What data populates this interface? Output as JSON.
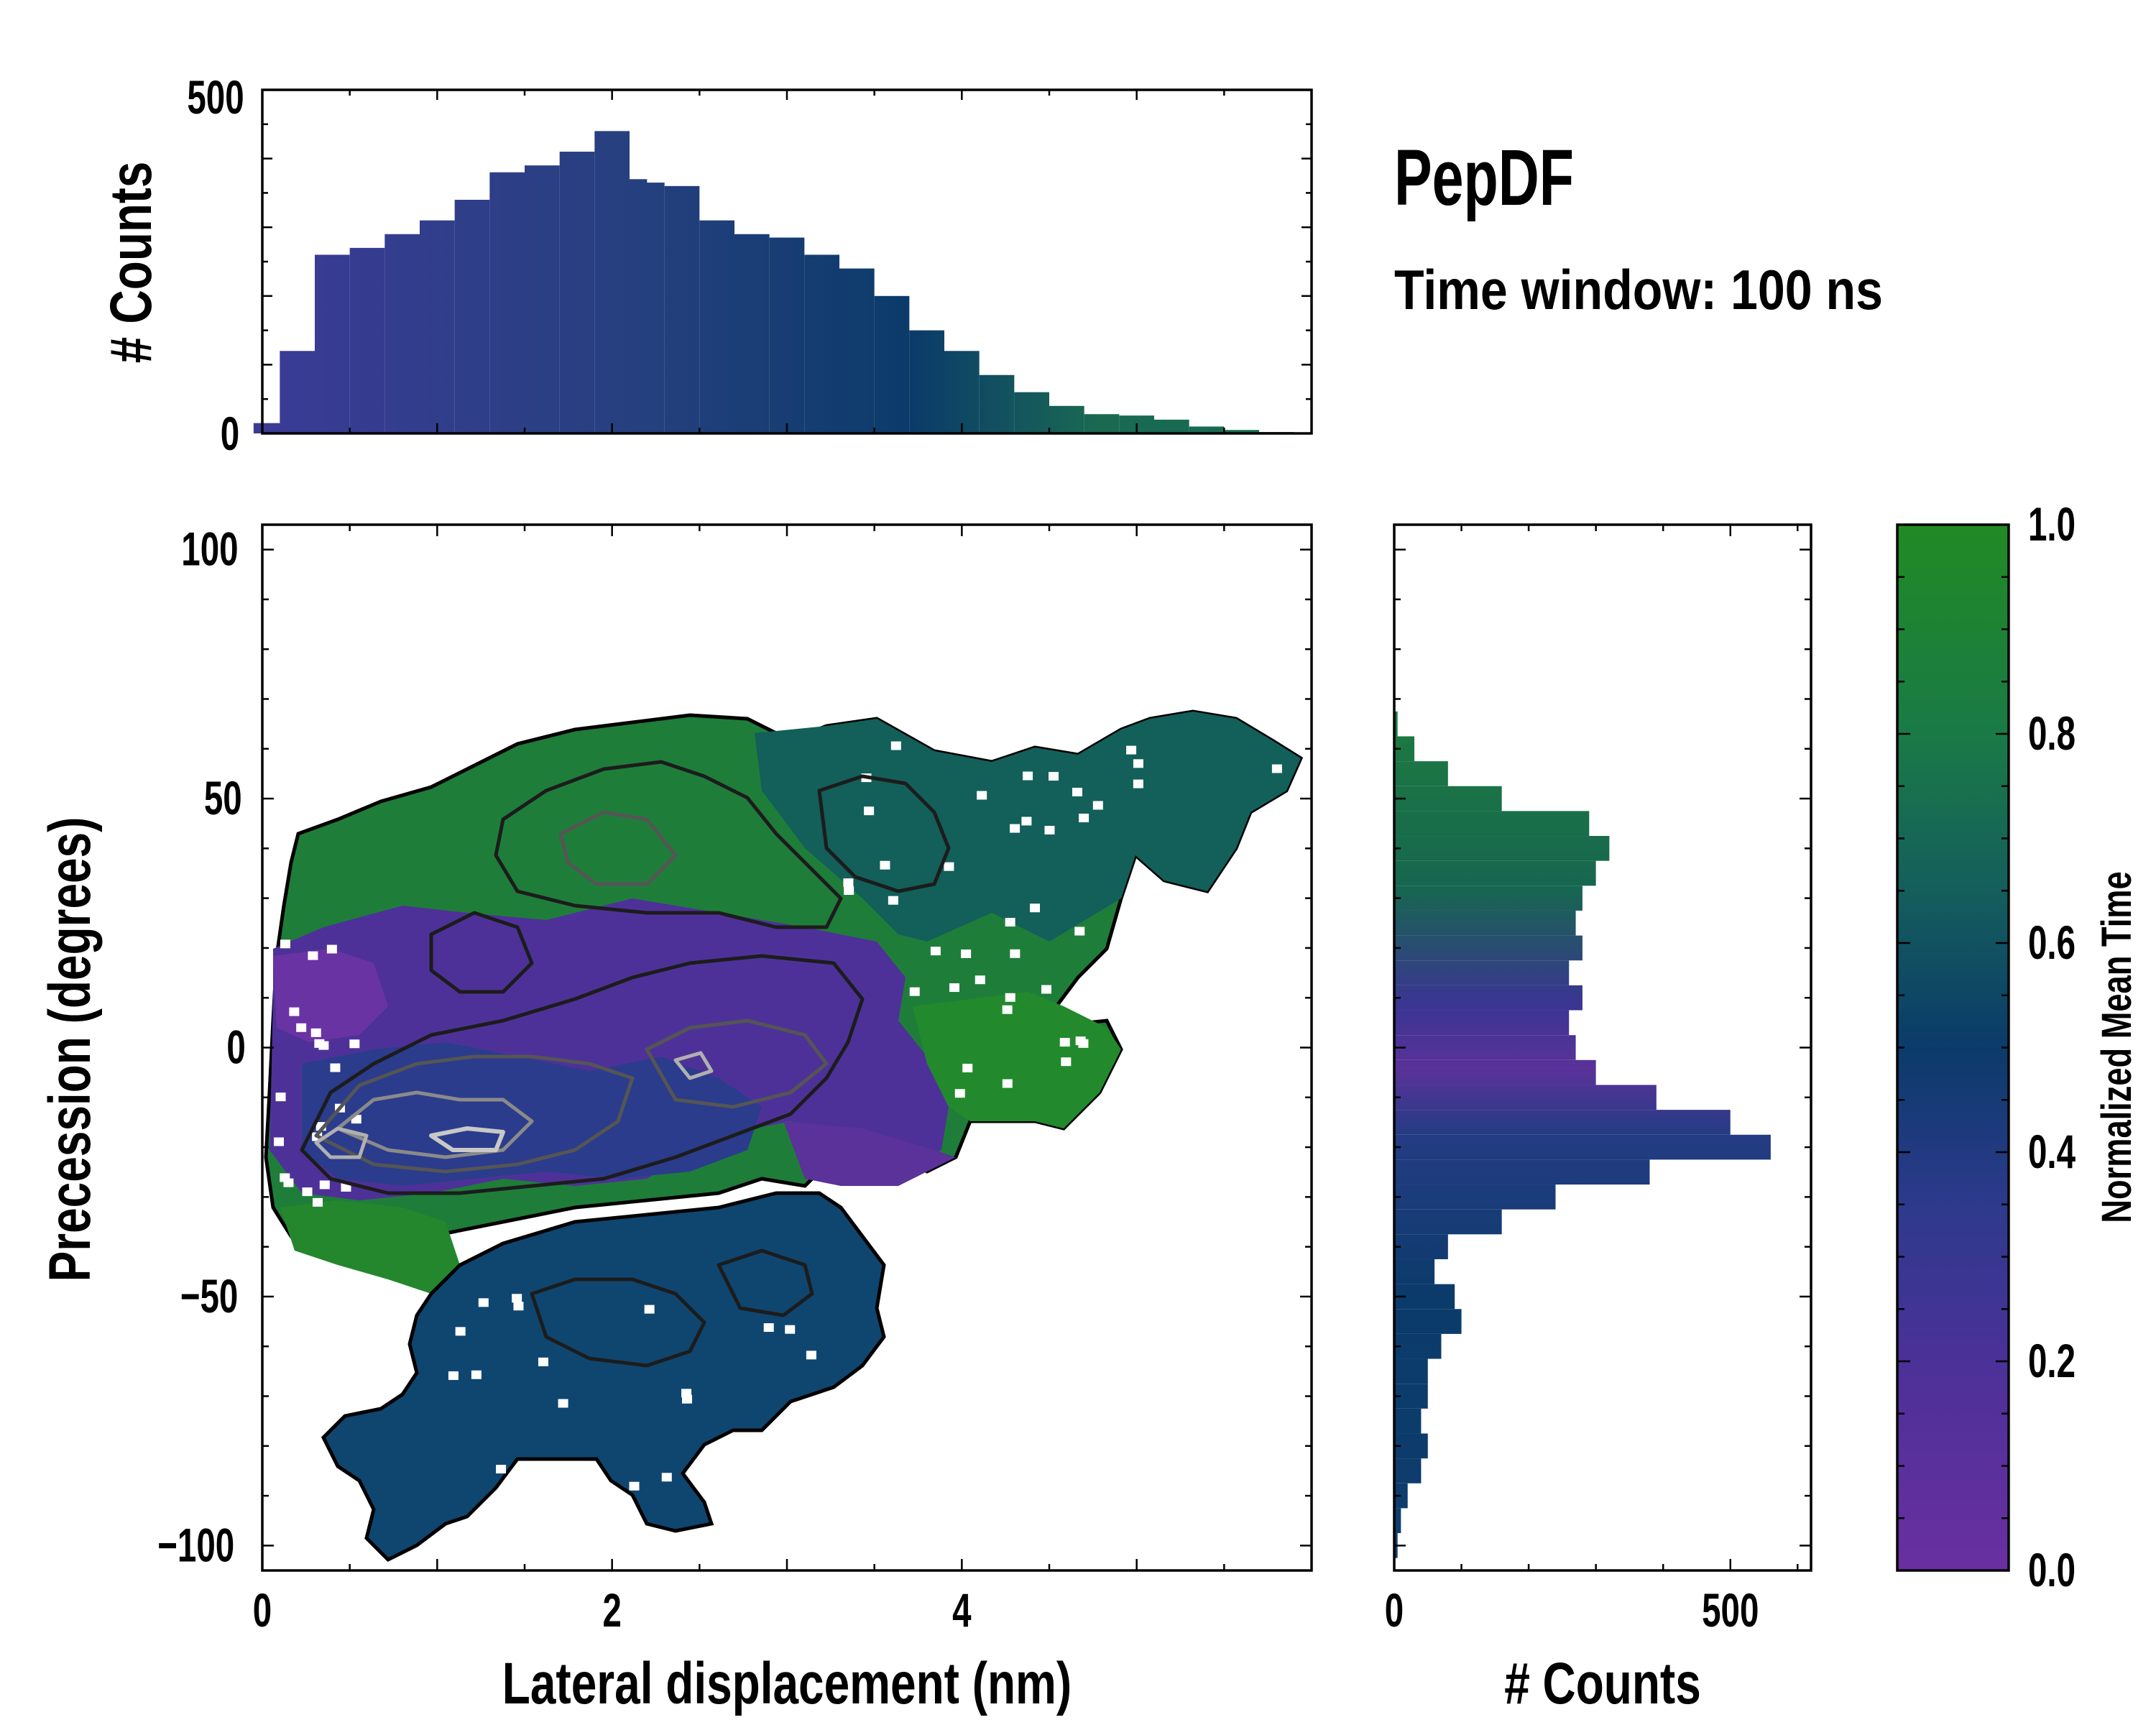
{
  "chart_data": [
    {
      "id": "main",
      "type": "heatmap",
      "title": "PepDF",
      "subtitle": "Time window: 100 ns",
      "xlabel": "Lateral displacement (nm)",
      "ylabel": "Precession (degrees)",
      "xlim": [
        0,
        6
      ],
      "ylim": [
        -105,
        105
      ],
      "xticks": [
        0,
        2,
        4
      ],
      "yticks": [
        100,
        50,
        0,
        -50,
        -100
      ],
      "ytick_labels": [
        "100",
        "50",
        "0",
        "−50",
        "−100"
      ],
      "contours": true,
      "notes": "2D histogram colored by normalized mean time, with density contours; hot spots near (0.4,-20) and (1.3,-20)"
    },
    {
      "id": "top_hist",
      "type": "bar",
      "ylabel": "# Counts",
      "ylim": [
        0,
        500
      ],
      "yticks": [
        0,
        500
      ],
      "xlim": [
        0,
        6
      ],
      "x": [
        0.05,
        0.2,
        0.4,
        0.6,
        0.8,
        1.0,
        1.2,
        1.4,
        1.6,
        1.8,
        2.0,
        2.1,
        2.2,
        2.4,
        2.6,
        2.8,
        3.0,
        3.2,
        3.4,
        3.6,
        3.8,
        4.0,
        4.2,
        4.4,
        4.6,
        4.8,
        5.0,
        5.2,
        5.4,
        5.6,
        5.8
      ],
      "values": [
        15,
        120,
        260,
        270,
        290,
        310,
        340,
        380,
        390,
        410,
        440,
        370,
        365,
        360,
        310,
        290,
        285,
        260,
        240,
        200,
        150,
        120,
        85,
        60,
        40,
        28,
        26,
        20,
        10,
        5,
        2
      ],
      "color_by": "normalized mean time"
    },
    {
      "id": "right_hist",
      "type": "bar",
      "orientation": "horizontal",
      "xlabel": "# Counts",
      "xlim": [
        0,
        620
      ],
      "xticks": [
        0,
        500
      ],
      "ylim": [
        -105,
        105
      ],
      "y": [
        65,
        60,
        55,
        50,
        45,
        40,
        35,
        30,
        25,
        20,
        15,
        10,
        5,
        0,
        -5,
        -10,
        -15,
        -20,
        -25,
        -30,
        -35,
        -40,
        -45,
        -50,
        -55,
        -60,
        -65,
        -70,
        -75,
        -80,
        -85,
        -90,
        -95,
        -100
      ],
      "values": [
        5,
        30,
        80,
        160,
        290,
        320,
        300,
        280,
        270,
        280,
        260,
        280,
        260,
        270,
        300,
        390,
        500,
        560,
        380,
        240,
        160,
        80,
        60,
        90,
        100,
        70,
        50,
        50,
        40,
        50,
        40,
        20,
        10,
        5
      ],
      "color_by": "normalized mean time"
    },
    {
      "id": "colorbar",
      "type": "colorbar",
      "label": "Normalized Mean Time",
      "range": [
        0.0,
        1.0
      ],
      "ticks": [
        0.0,
        0.2,
        0.4,
        0.6,
        0.8,
        1.0
      ],
      "tick_labels": [
        "0.0",
        "0.2",
        "0.4",
        "0.6",
        "0.8",
        "1.0"
      ],
      "colors": [
        "#6a2fa0",
        "#3a3592",
        "#243c84",
        "#0b3b6a",
        "#14645c",
        "#208a3a",
        "#218a24"
      ]
    }
  ]
}
